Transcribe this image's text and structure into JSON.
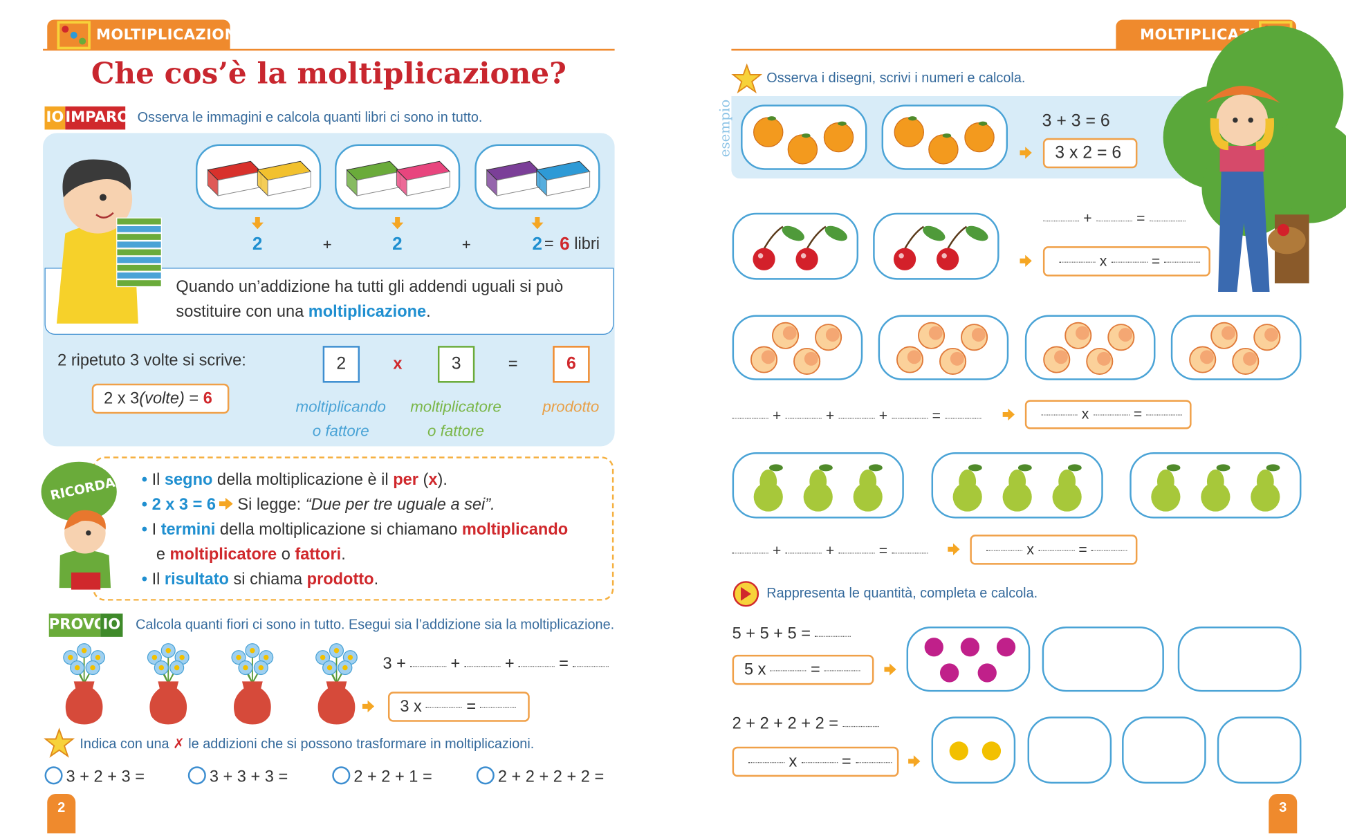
{
  "left_page": {
    "header": "MOLTIPLICAZIONI",
    "title": "Che cos’è la moltiplicazione?",
    "imparo": {
      "badge": [
        "IO",
        "IMPARO"
      ],
      "instruction": "Osserva le immagini e calcola quanti libri ci sono in tutto.",
      "sum": [
        "2",
        "+",
        "2",
        "+",
        "2",
        "=",
        "6",
        "libri"
      ],
      "rule": [
        "Quando un’addizione ha tutti gli addendi uguali si può sostituire con una ",
        "moltiplicazione",
        "."
      ],
      "repeat": "2 ripetuto 3 volte si scrive:",
      "written": [
        "2 x 3 ",
        "(volte)",
        " = ",
        "6"
      ],
      "operation": [
        "2",
        "x",
        "3",
        "=",
        "6"
      ],
      "terms": [
        [
          "moltiplicando",
          "o fattore"
        ],
        [
          "moltiplicatore",
          "o fattore"
        ],
        [
          "prodotto"
        ]
      ]
    },
    "ricorda": {
      "badge": "RICORDA!",
      "bullets": [
        [
          [
            "Il ",
            "segno",
            " della moltiplicazione è il ",
            "per",
            " (",
            "x",
            ")."
          ]
        ],
        [
          [
            "2 x 3 = 6",
            " Si legge: ",
            "“Due per tre uguale a sei”."
          ]
        ],
        [
          [
            "I ",
            "termini",
            " della moltiplicazione si chiamano ",
            "moltiplicando"
          ],
          [
            "e ",
            "moltiplicatore",
            " o ",
            "fattori",
            "."
          ]
        ],
        [
          [
            "Il ",
            "risultato",
            " si chiama ",
            "prodotto",
            "."
          ]
        ]
      ]
    },
    "provo": {
      "badge": [
        "PROVO",
        "IO"
      ],
      "instruction": "Calcola quanti fiori ci sono in tutto. Esegui sia l’addizione sia la moltiplicazione.",
      "addition": [
        "3 +",
        "+",
        "+",
        "="
      ],
      "multiplication": [
        "3 x",
        "="
      ]
    },
    "indica": {
      "instruction": [
        "Indica con una ",
        "✗",
        " le addizioni che si possono trasformare in moltiplicazioni."
      ],
      "options": [
        "3 + 2 + 3 =",
        "3 + 3 + 3 =",
        "2 + 2 + 1 =",
        "2 + 2 + 2 + 2 ="
      ]
    },
    "page_number": "2"
  },
  "right_page": {
    "header": "MOLTIPLICAZIONI",
    "osserva": {
      "instruction": "Osserva i disegni, scrivi i numeri e calcola.",
      "example_label": "esempio",
      "example": [
        "3 + 3 = 6",
        "3 x 2 = 6"
      ],
      "cherries": {
        "addition": [
          "+",
          "="
        ],
        "multiplication": [
          "x",
          "="
        ]
      },
      "peaches": {
        "addition": [
          "+",
          "+",
          "+",
          "="
        ],
        "multiplication": [
          "x",
          "="
        ]
      },
      "pears": {
        "addition": [
          "+",
          "+",
          "="
        ],
        "multiplication": [
          "x",
          "="
        ]
      }
    },
    "rappresenta": {
      "instruction": "Rappresenta le quantità, completa e calcola.",
      "rows": [
        {
          "addition": "5 + 5 + 5 =",
          "multiplication": [
            "5 x",
            "="
          ]
        },
        {
          "addition": "2 + 2 + 2 + 2 =",
          "multiplication": [
            "x",
            "="
          ]
        }
      ]
    },
    "page_number": "3"
  }
}
